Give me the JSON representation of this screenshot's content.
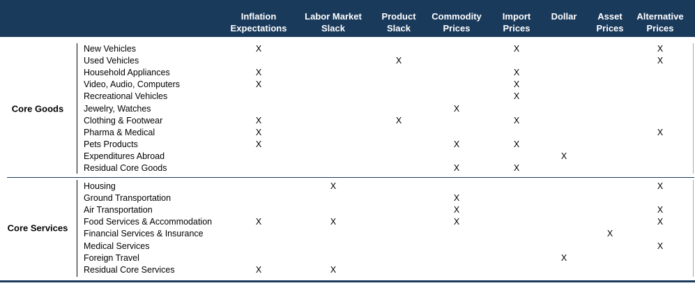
{
  "columns": [
    {
      "label": "Inflation\nExpectations"
    },
    {
      "label": "Labor Market\nSlack"
    },
    {
      "label": "Product\nSlack"
    },
    {
      "label": "Commodity\nPrices"
    },
    {
      "label": "Import\nPrices"
    },
    {
      "label": "Dollar"
    },
    {
      "label": "Asset\nPrices"
    },
    {
      "label": "Alternative\nPrices"
    }
  ],
  "mark": "X",
  "groups": [
    {
      "label": "Core Goods",
      "items": [
        {
          "name": "New Vehicles",
          "marks": [
            0,
            4,
            7
          ]
        },
        {
          "name": "Used Vehicles",
          "marks": [
            2,
            7
          ]
        },
        {
          "name": "Household Appliances",
          "marks": [
            0,
            4
          ]
        },
        {
          "name": "Video, Audio, Computers",
          "marks": [
            0,
            4
          ]
        },
        {
          "name": "Recreational Vehicles",
          "marks": [
            4
          ]
        },
        {
          "name": "Jewelry, Watches",
          "marks": [
            3
          ]
        },
        {
          "name": "Clothing & Footwear",
          "marks": [
            0,
            2,
            4
          ]
        },
        {
          "name": "Pharma & Medical",
          "marks": [
            0,
            7
          ]
        },
        {
          "name": "Pets Products",
          "marks": [
            0,
            3,
            4
          ]
        },
        {
          "name": "Expenditures Abroad",
          "marks": [
            5
          ]
        },
        {
          "name": "Residual Core Goods",
          "marks": [
            3,
            4
          ]
        }
      ]
    },
    {
      "label": "Core Services",
      "items": [
        {
          "name": "Housing",
          "marks": [
            1,
            7
          ]
        },
        {
          "name": "Ground Transportation",
          "marks": [
            3
          ]
        },
        {
          "name": "Air Transportation",
          "marks": [
            3,
            7
          ]
        },
        {
          "name": "Food Services & Accommodation",
          "marks": [
            0,
            1,
            3,
            7
          ]
        },
        {
          "name": "Financial Services & Insurance",
          "marks": [
            6
          ]
        },
        {
          "name": "Medical Services",
          "marks": [
            7
          ]
        },
        {
          "name": "Foreign Travel",
          "marks": [
            5
          ]
        },
        {
          "name": "Residual Core Services",
          "marks": [
            0,
            1
          ]
        }
      ]
    }
  ]
}
